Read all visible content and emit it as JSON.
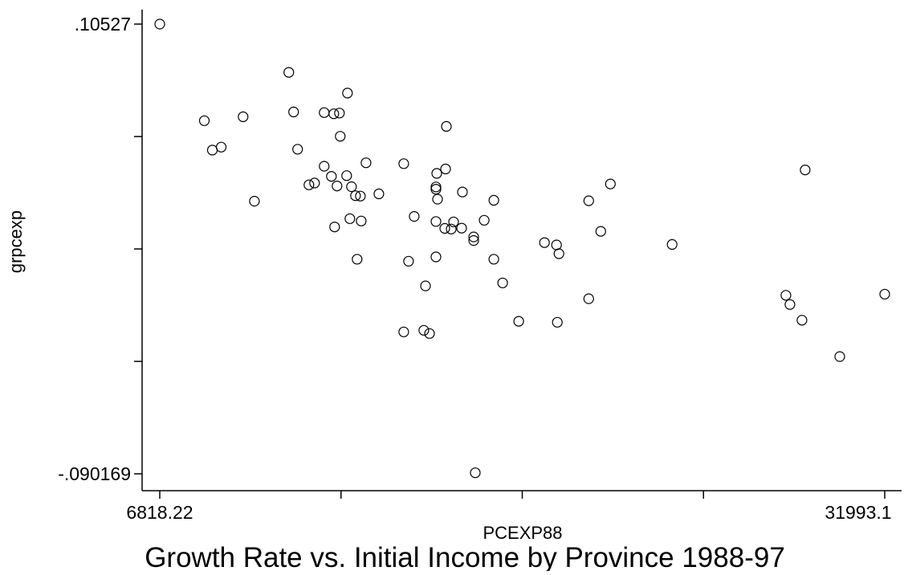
{
  "chart_data": {
    "type": "scatter",
    "title": "Growth Rate vs. Initial Income by Province 1988-97",
    "xlabel": "PCEXP88",
    "ylabel": "grpcexp",
    "xlim": [
      6818.22,
      31993.1
    ],
    "ylim": [
      -0.090169,
      0.10527
    ],
    "x_ticks": [
      6818.22,
      13111.94,
      19405.66,
      25699.38,
      31993.1
    ],
    "x_tick_labels": [
      "6818.22",
      "",
      "",
      "",
      "31993.1"
    ],
    "y_ticks": [
      -0.090169,
      -0.041309,
      0.007551,
      0.056411,
      0.10527
    ],
    "y_tick_labels": [
      "-.090169",
      "",
      "",
      "",
      ".10527"
    ],
    "grid": false,
    "legend": "none",
    "marker": "hollow-circle",
    "colors": {
      "marker": "#000000",
      "axis": "#000000",
      "background": "#ffffff"
    },
    "points": [
      {
        "x": 6818.22,
        "y": 0.10527
      },
      {
        "x": 8365,
        "y": 0.0633
      },
      {
        "x": 8645,
        "y": 0.0505
      },
      {
        "x": 8952,
        "y": 0.0518
      },
      {
        "x": 9712,
        "y": 0.065
      },
      {
        "x": 10104,
        "y": 0.0283
      },
      {
        "x": 11298,
        "y": 0.0843
      },
      {
        "x": 11466,
        "y": 0.0671
      },
      {
        "x": 11605,
        "y": 0.0509
      },
      {
        "x": 11997,
        "y": 0.0354
      },
      {
        "x": 12192,
        "y": 0.0362
      },
      {
        "x": 12527,
        "y": 0.0435
      },
      {
        "x": 12527,
        "y": 0.0668
      },
      {
        "x": 12778,
        "y": 0.0391
      },
      {
        "x": 12862,
        "y": 0.0663
      },
      {
        "x": 12890,
        "y": 0.0171
      },
      {
        "x": 12973,
        "y": 0.0349
      },
      {
        "x": 13057,
        "y": 0.0666
      },
      {
        "x": 13085,
        "y": 0.0565
      },
      {
        "x": 13308,
        "y": 0.0394
      },
      {
        "x": 13336,
        "y": 0.0753
      },
      {
        "x": 13420,
        "y": 0.0207
      },
      {
        "x": 13476,
        "y": 0.0346
      },
      {
        "x": 13616,
        "y": 0.0307
      },
      {
        "x": 13672,
        "y": 0.0031
      },
      {
        "x": 13784,
        "y": 0.0305
      },
      {
        "x": 13812,
        "y": 0.0197
      },
      {
        "x": 13979,
        "y": 0.045
      },
      {
        "x": 14426,
        "y": 0.0315
      },
      {
        "x": 15291,
        "y": 0.0446
      },
      {
        "x": 15291,
        "y": -0.0285
      },
      {
        "x": 15459,
        "y": 0.0022
      },
      {
        "x": 15654,
        "y": 0.0217
      },
      {
        "x": 15989,
        "y": -0.0278
      },
      {
        "x": 16045,
        "y": -0.0085
      },
      {
        "x": 16185,
        "y": -0.0292
      },
      {
        "x": 16408,
        "y": 0.0345
      },
      {
        "x": 16408,
        "y": 0.0335
      },
      {
        "x": 16408,
        "y": 0.0195
      },
      {
        "x": 16408,
        "y": 0.0041
      },
      {
        "x": 16436,
        "y": 0.0404
      },
      {
        "x": 16464,
        "y": 0.0292
      },
      {
        "x": 16715,
        "y": 0.0165
      },
      {
        "x": 16743,
        "y": 0.0423
      },
      {
        "x": 16771,
        "y": 0.0608
      },
      {
        "x": 16938,
        "y": 0.0162
      },
      {
        "x": 17022,
        "y": 0.0193
      },
      {
        "x": 17301,
        "y": 0.0166
      },
      {
        "x": 17329,
        "y": 0.0323
      },
      {
        "x": 17720,
        "y": 0.0128
      },
      {
        "x": 17720,
        "y": 0.0112
      },
      {
        "x": 17776,
        "y": -0.0897
      },
      {
        "x": 18083,
        "y": 0.02
      },
      {
        "x": 18418,
        "y": 0.0287
      },
      {
        "x": 18418,
        "y": 0.0031
      },
      {
        "x": 18725,
        "y": -0.0072
      },
      {
        "x": 19284,
        "y": -0.0239
      },
      {
        "x": 20177,
        "y": 0.0103
      },
      {
        "x": 20596,
        "y": 0.0093
      },
      {
        "x": 20624,
        "y": -0.0243
      },
      {
        "x": 20680,
        "y": 0.0055
      },
      {
        "x": 21713,
        "y": -0.0141
      },
      {
        "x": 21713,
        "y": 0.0285
      },
      {
        "x": 22132,
        "y": 0.0152
      },
      {
        "x": 22467,
        "y": 0.0358
      },
      {
        "x": 24612,
        "y": 0.0095
      },
      {
        "x": 28560,
        "y": -0.0126
      },
      {
        "x": 28700,
        "y": -0.0166
      },
      {
        "x": 29119,
        "y": -0.0234
      },
      {
        "x": 29230,
        "y": 0.0419
      },
      {
        "x": 30431,
        "y": -0.0392
      },
      {
        "x": 31993.1,
        "y": -0.0121
      }
    ]
  }
}
